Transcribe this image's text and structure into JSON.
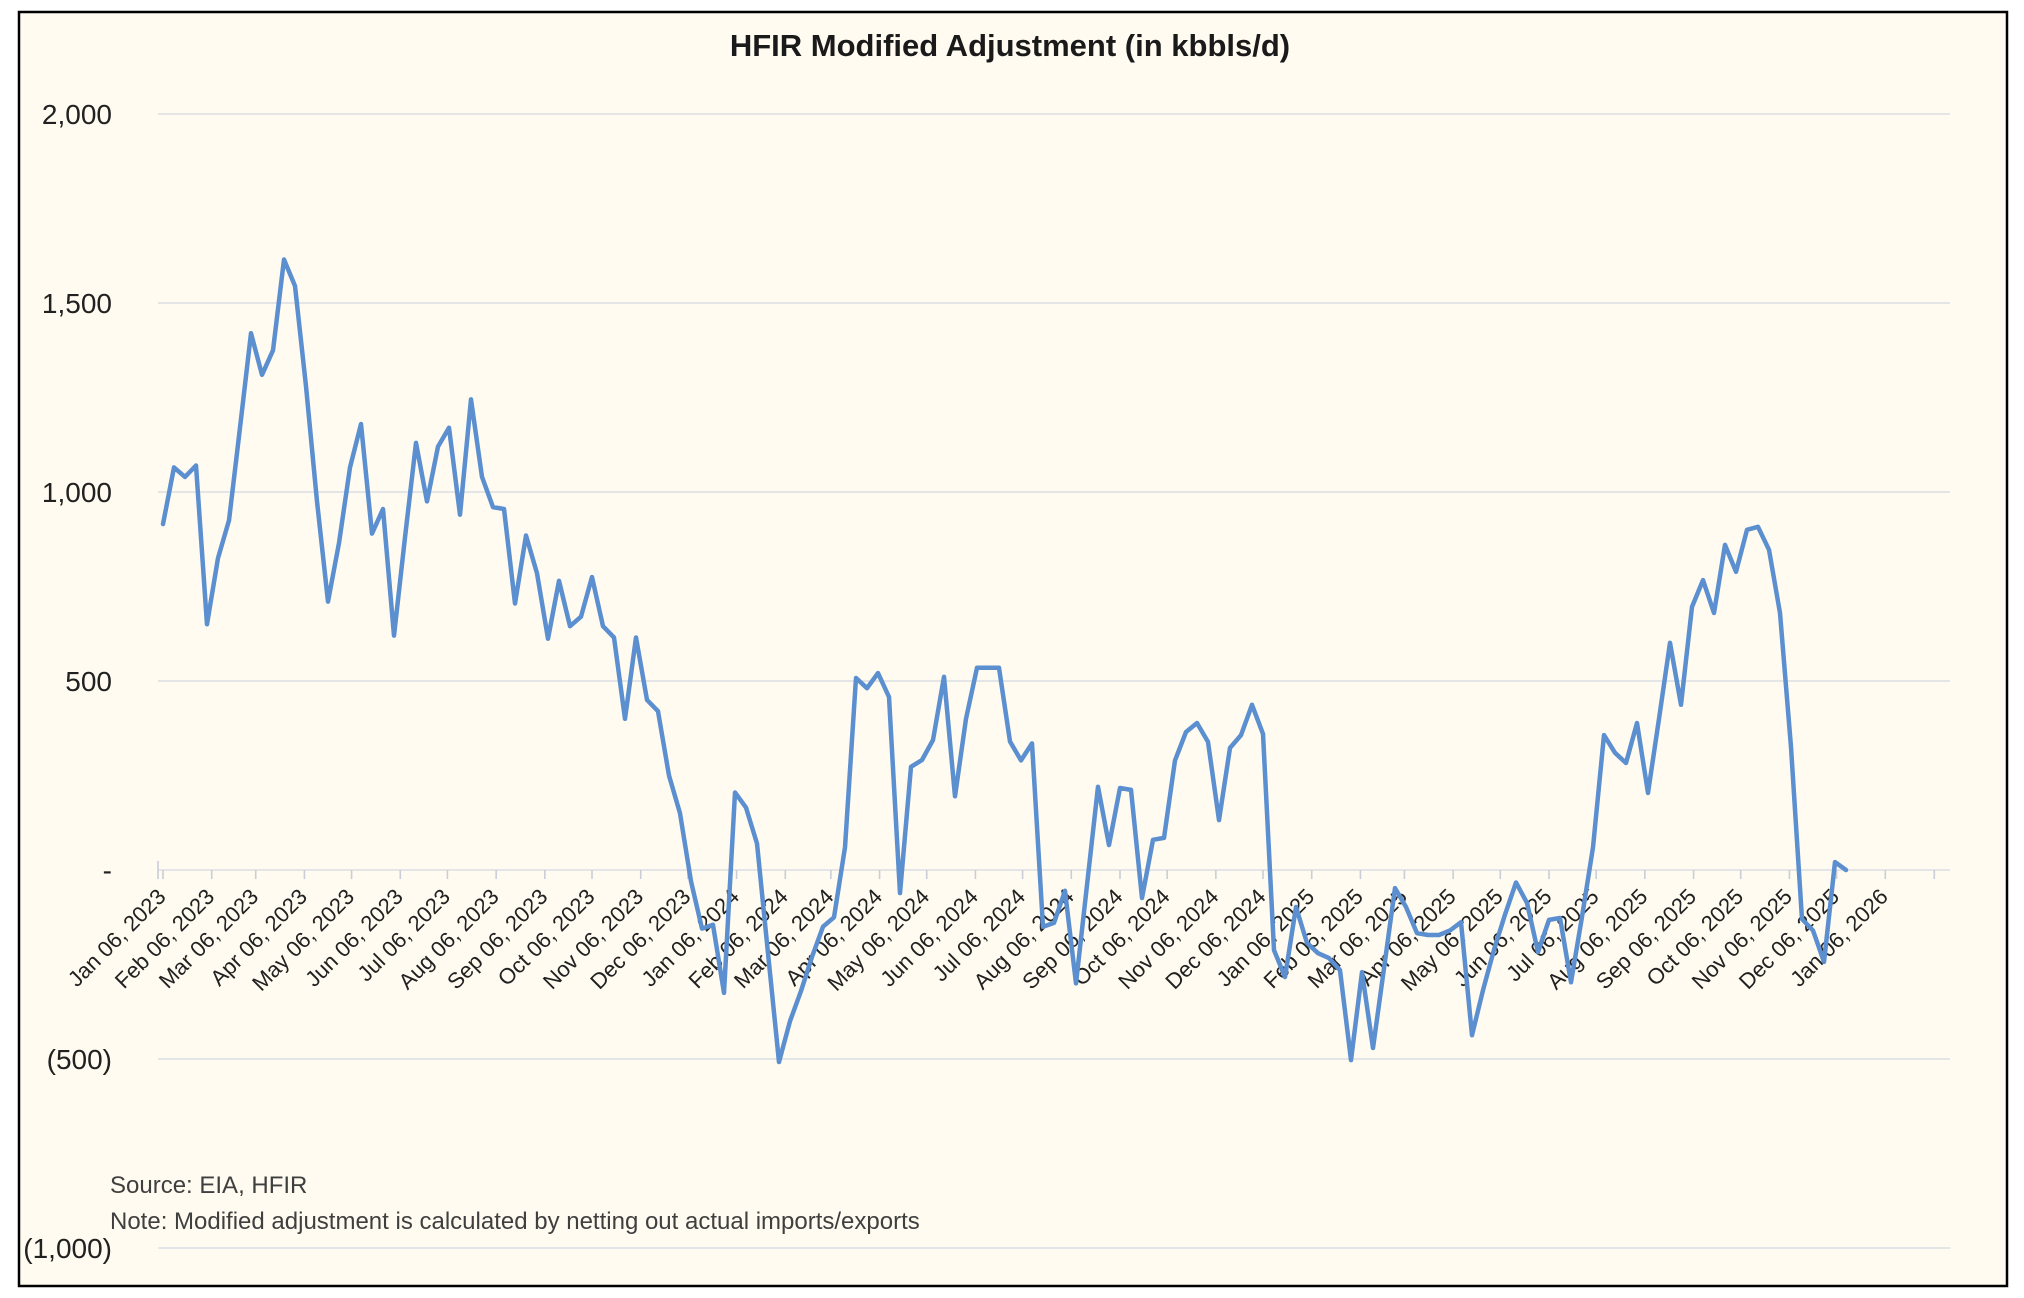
{
  "page": {
    "background": "#ffffff"
  },
  "chart": {
    "background": "#FFFBF0",
    "border_color": "#000000",
    "line_color": "#5B8FD0",
    "grid_color": "#DADEE4",
    "tick_color": "#C9CED6",
    "text_color": "#212121",
    "footer_color": "#3F3F3F"
  },
  "footer": {
    "source": "Source: EIA, HFIR",
    "note": "Note: Modified adjustment is calculated by netting out actual imports/exports"
  },
  "chart_data": {
    "type": "line",
    "title": "HFIR Modified Adjustment (in kbbls/d)",
    "series_name": "HFIR Modified Adjustment",
    "unit": "kbbls/d",
    "start_date": "2023-01-06",
    "frequency": "weekly",
    "legend": "none",
    "grid": "horizontal",
    "ylim": [
      -1000,
      2000
    ],
    "y_ticks": [
      {
        "label": "2,000",
        "value": 2000
      },
      {
        "label": "1,500",
        "value": 1500
      },
      {
        "label": "1,000",
        "value": 1000
      },
      {
        "label": "500",
        "value": 500
      },
      {
        "label": "-",
        "value": 0
      },
      {
        "label": "(500)",
        "value": -500
      },
      {
        "label": "(1,000)",
        "value": -1000
      }
    ],
    "x_tick_labels": [
      "Jan 06, 2023",
      "Feb 06, 2023",
      "Mar 06, 2023",
      "Apr 06, 2023",
      "May 06, 2023",
      "Jun 06, 2023",
      "Jul 06, 2023",
      "Aug 06, 2023",
      "Sep 06, 2023",
      "Oct 06, 2023",
      "Nov 06, 2023",
      "Dec 06, 2023",
      "Jan 06, 2024",
      "Feb 06, 2024",
      "Mar 06, 2024",
      "Apr 06, 2024",
      "May 06, 2024",
      "Jun 06, 2024",
      "Jul 06, 2024",
      "Aug 06, 2024",
      "Sep 06, 2024",
      "Oct 06, 2024",
      "Nov 06, 2024",
      "Dec 06, 2024",
      "Jan 06, 2025",
      "Feb 06, 2025",
      "Mar 06, 2025",
      "Apr 06, 2025",
      "May 06, 2025",
      "Jun 06, 2025",
      "Jul 06, 2025",
      "Aug 06, 2025",
      "Sep 06, 2025",
      "Oct 06, 2025",
      "Nov 06, 2025",
      "Dec 06, 2025",
      "Jan 06, 2026"
    ],
    "values": [
      915,
      1065,
      1040,
      1070,
      650,
      825,
      925,
      1170,
      1420,
      1310,
      1375,
      1615,
      1545,
      1280,
      975,
      710,
      865,
      1065,
      1180,
      890,
      955,
      620,
      880,
      1130,
      975,
      1120,
      1170,
      940,
      1245,
      1040,
      960,
      955,
      705,
      885,
      785,
      612,
      765,
      645,
      670,
      775,
      645,
      615,
      400,
      615,
      450,
      420,
      250,
      150,
      -30,
      -155,
      -145,
      -325,
      205,
      165,
      70,
      -220,
      -508,
      -400,
      -320,
      -230,
      -150,
      -125,
      60,
      508,
      481,
      521,
      458,
      -61,
      273,
      291,
      344,
      511,
      195,
      400,
      535,
      535,
      535,
      340,
      290,
      335,
      -150,
      -140,
      -55,
      -300,
      -40,
      220,
      66,
      217,
      212,
      -74,
      80,
      85,
      290,
      365,
      389,
      339,
      132,
      323,
      357,
      437,
      360,
      -212,
      -283,
      -98,
      -193,
      -220,
      -233,
      -265,
      -503,
      -270,
      -471,
      -260,
      -48,
      -98,
      -167,
      -172,
      -172,
      -160,
      -138,
      -437,
      -318,
      -211,
      -118,
      -33,
      -87,
      -217,
      -132,
      -127,
      -297,
      -124,
      60,
      357,
      310,
      283,
      389,
      204,
      400,
      601,
      437,
      696,
      767,
      680,
      860,
      789,
      900,
      908,
      847,
      680,
      325,
      -130,
      -160,
      -243,
      21,
      0
    ]
  }
}
